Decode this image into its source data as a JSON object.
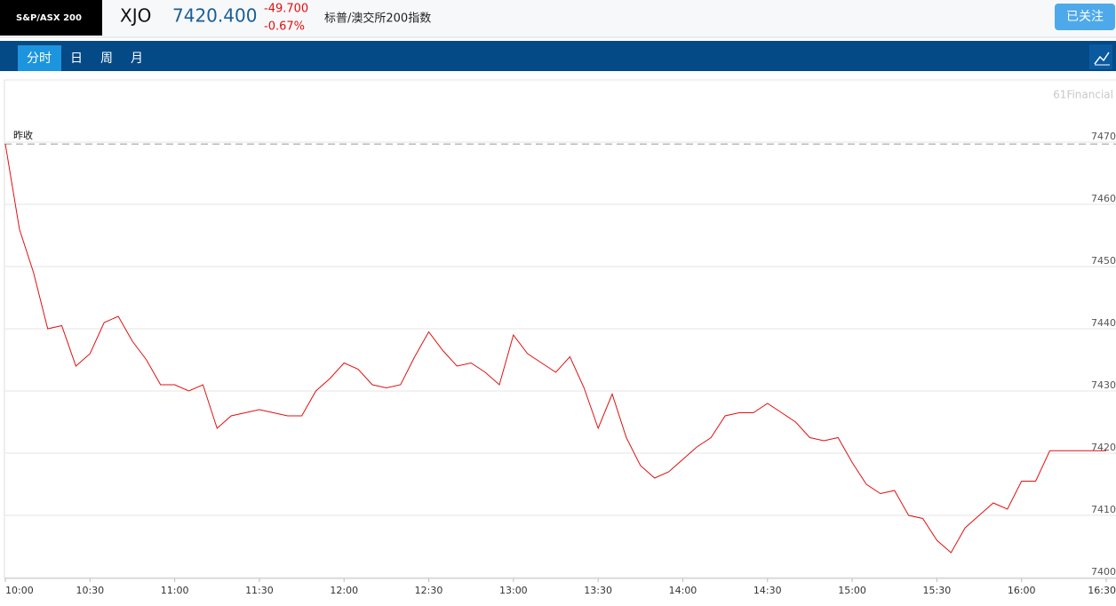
{
  "header": {
    "logo": "S&P/ASX 200",
    "symbol": "XJO",
    "price": "7420.400",
    "change": "-49.700",
    "change_pct": "-0.67%",
    "name": "标普/澳交所200指数",
    "follow_button": "已关注"
  },
  "tabs": [
    "分时",
    "日",
    "周",
    "月"
  ],
  "chart_data": {
    "type": "line",
    "watermark": "61Financial",
    "prev_close_label": "昨收",
    "prev_close": 7469.7,
    "x": [
      600,
      605,
      610,
      615,
      620,
      625,
      630,
      635,
      640,
      645,
      650,
      655,
      660,
      665,
      670,
      675,
      680,
      685,
      690,
      695,
      700,
      705,
      710,
      715,
      720,
      725,
      730,
      735,
      740,
      745,
      750,
      755,
      760,
      765,
      770,
      775,
      780,
      785,
      790,
      795,
      800,
      805,
      810,
      815,
      820,
      825,
      830,
      835,
      840,
      845,
      850,
      855,
      860,
      865,
      870,
      875,
      880,
      885,
      890,
      895,
      900,
      905,
      910,
      915,
      920,
      925,
      930,
      935,
      940,
      945,
      950,
      955,
      960,
      965,
      970,
      975,
      980,
      985,
      990
    ],
    "series": [
      {
        "color": "#e01010",
        "values": [
          7469.7,
          7456,
          7449,
          7440,
          7440.5,
          7434,
          7436,
          7441,
          7442,
          7438,
          7435,
          7431,
          7431,
          7430,
          7431,
          7424,
          7426,
          7426.5,
          7427,
          7426.5,
          7426,
          7426,
          7430,
          7432,
          7434.5,
          7433.5,
          7431,
          7430.5,
          7431,
          7435.5,
          7439.5,
          7436.5,
          7434,
          7434.5,
          7433,
          7431,
          7439,
          7436,
          7434.5,
          7433,
          7435.5,
          7430.5,
          7424,
          7429.5,
          7422.5,
          7418,
          7416,
          7417,
          7419,
          7421,
          7422.5,
          7426,
          7426.5,
          7426.5,
          7428,
          7426.5,
          7425,
          7422.5,
          7422,
          7422.5,
          7418.5,
          7415,
          7413.5,
          7414,
          7410,
          7409.5,
          7406,
          7404,
          7408,
          7410,
          7412,
          7411,
          7415.5,
          7415.5,
          7420.4,
          7420.4,
          7420.4,
          7420.4,
          7420.4
        ]
      }
    ],
    "xlim": [
      600,
      990
    ],
    "xticks": [
      {
        "value": 600,
        "label": "10:00"
      },
      {
        "value": 630,
        "label": "10:30"
      },
      {
        "value": 660,
        "label": "11:00"
      },
      {
        "value": 690,
        "label": "11:30"
      },
      {
        "value": 720,
        "label": "12:00"
      },
      {
        "value": 750,
        "label": "12:30"
      },
      {
        "value": 780,
        "label": "13:00"
      },
      {
        "value": 810,
        "label": "13:30"
      },
      {
        "value": 840,
        "label": "14:00"
      },
      {
        "value": 870,
        "label": "14:30"
      },
      {
        "value": 900,
        "label": "15:00"
      },
      {
        "value": 930,
        "label": "15:30"
      },
      {
        "value": 960,
        "label": "16:00"
      },
      {
        "value": 990,
        "label": "16:30"
      }
    ],
    "ylim": [
      7400,
      7480
    ],
    "yticks": [
      7400,
      7410,
      7420,
      7430,
      7440,
      7450,
      7460,
      7470
    ],
    "grid": true
  }
}
